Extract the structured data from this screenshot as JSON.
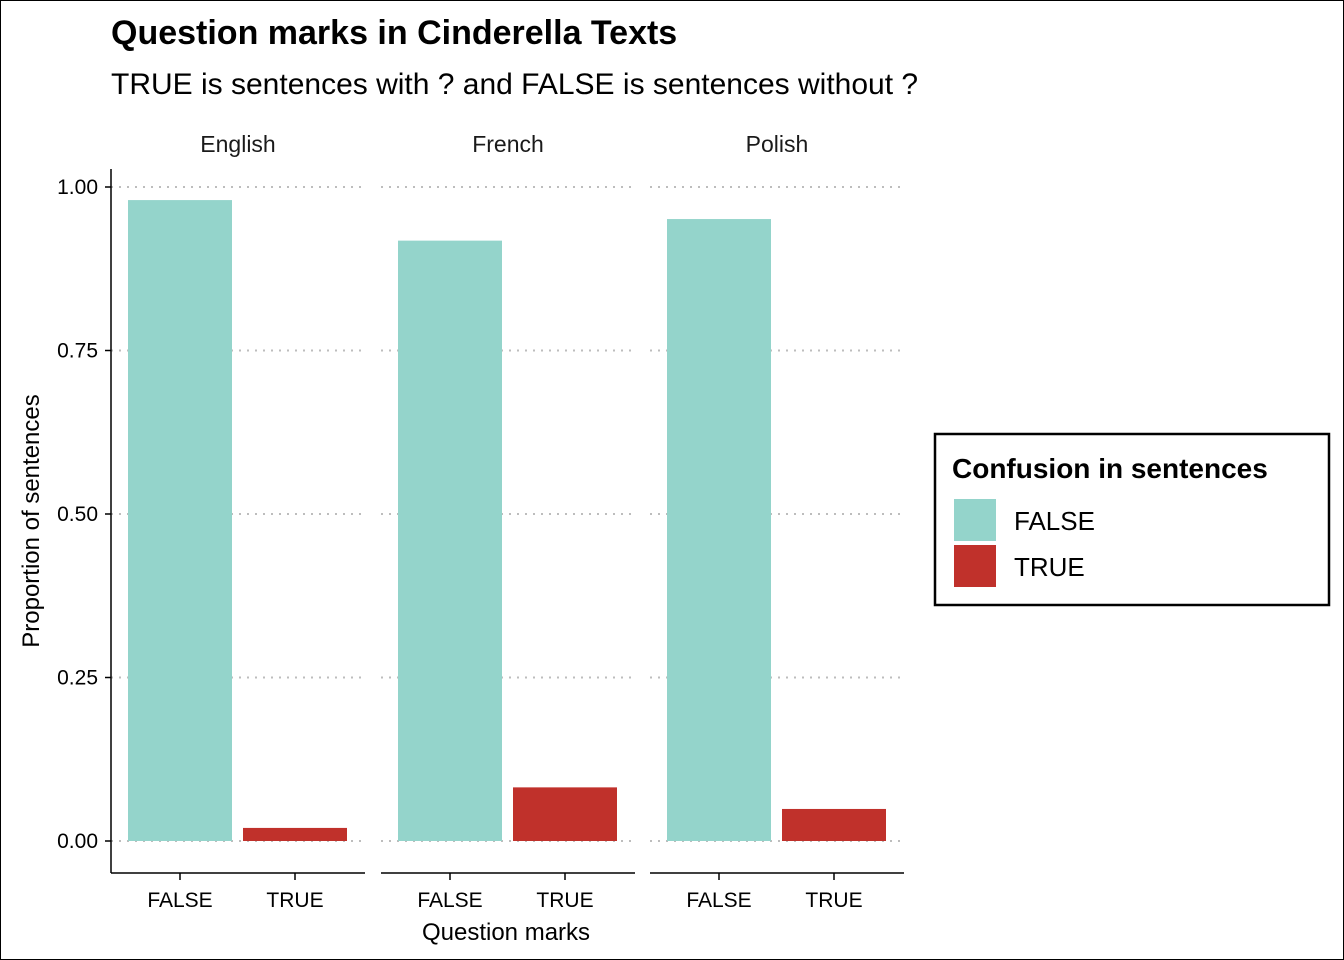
{
  "chart_data": {
    "type": "bar",
    "title": "Question marks in Cinderella Texts",
    "subtitle": "TRUE is sentences with ? and FALSE is sentences without ?",
    "xlabel": "Question marks",
    "ylabel": "Proportion of sentences",
    "ylim": [
      0,
      1.0
    ],
    "yticks": [
      "0.00",
      "0.25",
      "0.50",
      "0.75",
      "1.00"
    ],
    "categories": [
      "FALSE",
      "TRUE"
    ],
    "facets": [
      {
        "name": "English",
        "values": [
          0.98,
          0.02
        ]
      },
      {
        "name": "French",
        "values": [
          0.918,
          0.082
        ]
      },
      {
        "name": "Polish",
        "values": [
          0.951,
          0.049
        ]
      }
    ],
    "legend": {
      "title": "Confusion in sentences",
      "position": "right",
      "items": [
        {
          "label": "FALSE",
          "color": "#94d4cb"
        },
        {
          "label": "TRUE",
          "color": "#c0312b"
        }
      ]
    },
    "grid": "horizontal dotted"
  }
}
